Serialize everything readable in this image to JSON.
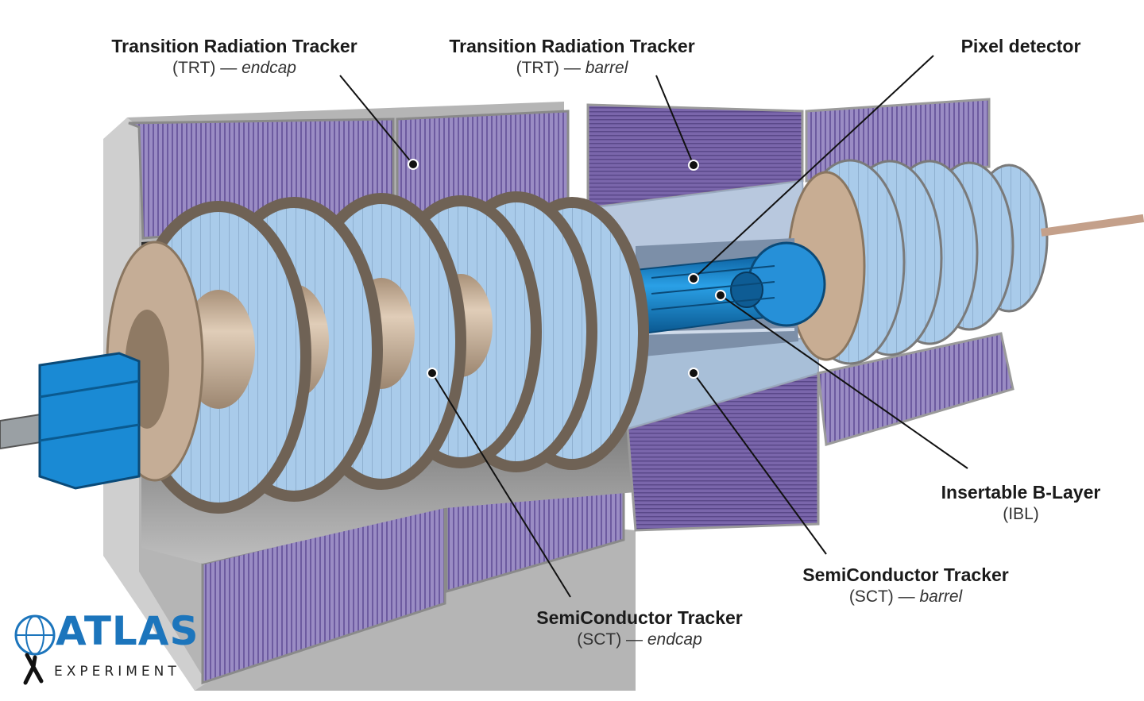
{
  "labels": {
    "trt_endcap": {
      "title": "Transition Radiation Tracker",
      "sub_prefix": "(TRT) — ",
      "sub_italic": "endcap"
    },
    "trt_barrel": {
      "title": "Transition Radiation Tracker",
      "sub_prefix": "(TRT) — ",
      "sub_italic": "barrel"
    },
    "pixel": {
      "title": "Pixel detector"
    },
    "ibl": {
      "title": "Insertable B-Layer",
      "sub": "(IBL)"
    },
    "sct_barrel": {
      "title": "SemiConductor Tracker",
      "sub_prefix": "(SCT) — ",
      "sub_italic": "barrel"
    },
    "sct_endcap": {
      "title": "SemiConductor Tracker",
      "sub_prefix": "(SCT) — ",
      "sub_italic": "endcap"
    }
  },
  "logo": {
    "name": "ATLAS",
    "sub": "EXPERIMENT"
  },
  "colors": {
    "trt_purple": "#8e7fb8",
    "trt_dark": "#5f4d8e",
    "frame_gray": "#bdbdbd",
    "sct_blue": "#9cc3e6",
    "support_tan": "#c4ae96",
    "pixel_blue": "#1f8fd6",
    "logo_blue": "#1c75bc"
  }
}
